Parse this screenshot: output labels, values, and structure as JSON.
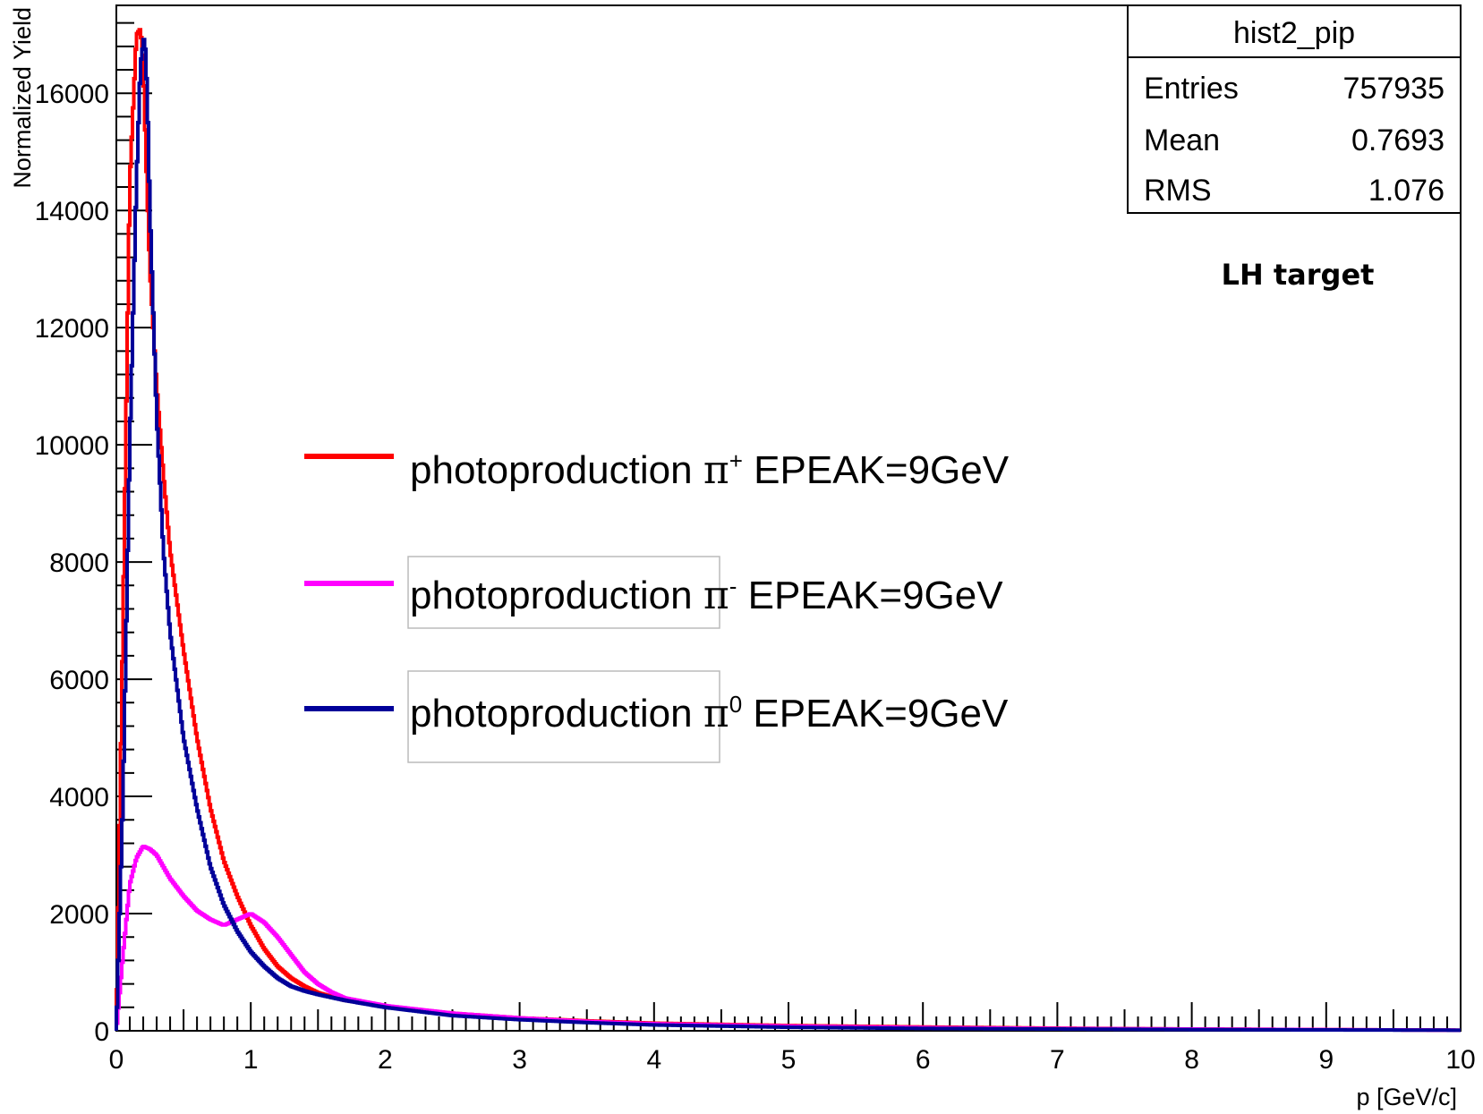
{
  "chart_data": {
    "type": "line",
    "xlabel": "p [GeV/c]",
    "ylabel": "Normalized Yield",
    "xlim": [
      0,
      10
    ],
    "ylim": [
      0,
      17500
    ],
    "x_ticks": [
      0,
      1,
      2,
      3,
      4,
      5,
      6,
      7,
      8,
      9,
      10
    ],
    "y_ticks": [
      0,
      2000,
      4000,
      6000,
      8000,
      10000,
      12000,
      14000,
      16000
    ],
    "x_tick_labels": [
      "0",
      "1",
      "2",
      "3",
      "4",
      "5",
      "6",
      "7",
      "8",
      "9",
      "10"
    ],
    "y_tick_labels": [
      "0",
      "2000",
      "4000",
      "6000",
      "8000",
      "10000",
      "12000",
      "14000",
      "16000"
    ],
    "grid": false,
    "stats_box": {
      "title": "hist2_pip",
      "rows": [
        {
          "label": "Entries",
          "value": "757935"
        },
        {
          "label": "Mean",
          "value": "0.7693"
        },
        {
          "label": "RMS",
          "value": "1.076"
        }
      ]
    },
    "annotation": "LH target",
    "legend": {
      "placement": "center",
      "entries": [
        {
          "prefix": "photoproduction ",
          "symbol": "π",
          "sup": "+",
          "suffix": " EPEAK=9GeV",
          "color": "#ff0000"
        },
        {
          "prefix": "photoproduction ",
          "symbol": "π",
          "sup": "-",
          "suffix": " EPEAK=9GeV",
          "color": "#ff00ff"
        },
        {
          "prefix": "photoproduction ",
          "symbol": "π",
          "sup": "0",
          "suffix": " EPEAK=9GeV",
          "color": "#000099"
        }
      ]
    },
    "series": [
      {
        "color": "#ff0000",
        "x": [
          0,
          0.05,
          0.1,
          0.15,
          0.18,
          0.2,
          0.22,
          0.25,
          0.3,
          0.35,
          0.4,
          0.5,
          0.6,
          0.7,
          0.8,
          0.9,
          1.0,
          1.1,
          1.2,
          1.3,
          1.4,
          1.5,
          1.7,
          2.0,
          2.5,
          3.0,
          3.5,
          4.0,
          5.0,
          6.0,
          7.0,
          8.0,
          9.0,
          10.0
        ],
        "y": [
          0,
          7000,
          14500,
          17000,
          17100,
          16500,
          15000,
          13000,
          11000,
          9500,
          8200,
          6500,
          5000,
          3800,
          2900,
          2300,
          1800,
          1400,
          1100,
          900,
          760,
          650,
          520,
          420,
          300,
          220,
          170,
          130,
          90,
          65,
          45,
          30,
          20,
          10
        ]
      },
      {
        "color": "#ff00ff",
        "x": [
          0,
          0.05,
          0.1,
          0.15,
          0.2,
          0.25,
          0.3,
          0.4,
          0.5,
          0.6,
          0.7,
          0.8,
          0.9,
          1.0,
          1.1,
          1.2,
          1.3,
          1.4,
          1.5,
          1.6,
          1.7,
          2.0,
          2.5,
          3.0,
          3.5,
          4.0,
          5.0,
          6.0,
          7.0,
          8.0,
          9.0,
          10.0
        ],
        "y": [
          0,
          1300,
          2500,
          2950,
          3150,
          3100,
          3000,
          2600,
          2300,
          2050,
          1900,
          1800,
          1900,
          2000,
          1850,
          1600,
          1300,
          1000,
          800,
          660,
          560,
          430,
          300,
          220,
          160,
          120,
          80,
          55,
          40,
          30,
          20,
          10
        ]
      },
      {
        "color": "#000099",
        "x": [
          0,
          0.05,
          0.1,
          0.15,
          0.18,
          0.21,
          0.23,
          0.25,
          0.3,
          0.35,
          0.4,
          0.5,
          0.6,
          0.7,
          0.8,
          0.9,
          1.0,
          1.1,
          1.2,
          1.3,
          1.4,
          1.5,
          1.7,
          2.0,
          2.5,
          3.0,
          3.5,
          4.0,
          5.0,
          6.0,
          7.0,
          8.0,
          9.0,
          10.0
        ],
        "y": [
          0,
          4000,
          10000,
          14500,
          16500,
          17000,
          16000,
          14000,
          10500,
          8200,
          6800,
          5000,
          3800,
          2800,
          2150,
          1700,
          1350,
          1100,
          900,
          760,
          680,
          620,
          520,
          400,
          260,
          190,
          140,
          100,
          60,
          40,
          30,
          20,
          15,
          10
        ]
      }
    ]
  }
}
